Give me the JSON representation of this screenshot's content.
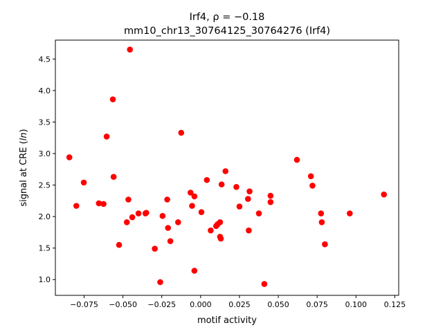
{
  "chart_data": {
    "type": "scatter",
    "title_line1": "Irf4, ρ = −0.18",
    "title_line2": "mm10_chr13_30764125_30764276 (Irf4)",
    "xlabel": "motif activity",
    "ylabel": "signal at CRE (ln)",
    "xlim": [
      -0.0935,
      0.1275
    ],
    "ylim": [
      0.75,
      4.8
    ],
    "xticks": [
      -0.075,
      -0.05,
      -0.025,
      0.0,
      0.025,
      0.05,
      0.075,
      0.1,
      0.125
    ],
    "xtick_labels": [
      "−0.075",
      "−0.050",
      "−0.025",
      "0.000",
      "0.025",
      "0.050",
      "0.075",
      "0.100",
      "0.125"
    ],
    "yticks": [
      1.0,
      1.5,
      2.0,
      2.5,
      3.0,
      3.5,
      4.0,
      4.5
    ],
    "ytick_labels": [
      "1.0",
      "1.5",
      "2.0",
      "2.5",
      "3.0",
      "3.5",
      "4.0",
      "4.5"
    ],
    "grid": false,
    "marker_color": "#ff0000",
    "points": [
      {
        "x": -0.0845,
        "y": 2.94
      },
      {
        "x": -0.08,
        "y": 2.17
      },
      {
        "x": -0.0752,
        "y": 2.54
      },
      {
        "x": -0.0655,
        "y": 2.21
      },
      {
        "x": -0.0625,
        "y": 2.2
      },
      {
        "x": -0.0605,
        "y": 3.27
      },
      {
        "x": -0.0565,
        "y": 3.86
      },
      {
        "x": -0.056,
        "y": 2.63
      },
      {
        "x": -0.0525,
        "y": 1.55
      },
      {
        "x": -0.0475,
        "y": 1.91
      },
      {
        "x": -0.0465,
        "y": 2.27
      },
      {
        "x": -0.0455,
        "y": 4.65
      },
      {
        "x": -0.044,
        "y": 1.99
      },
      {
        "x": -0.04,
        "y": 2.05
      },
      {
        "x": -0.0355,
        "y": 2.05
      },
      {
        "x": -0.035,
        "y": 2.06
      },
      {
        "x": -0.0295,
        "y": 1.49
      },
      {
        "x": -0.026,
        "y": 0.96
      },
      {
        "x": -0.0245,
        "y": 2.01
      },
      {
        "x": -0.0215,
        "y": 2.27
      },
      {
        "x": -0.021,
        "y": 1.82
      },
      {
        "x": -0.0195,
        "y": 1.61
      },
      {
        "x": -0.0145,
        "y": 1.91
      },
      {
        "x": -0.0125,
        "y": 3.33
      },
      {
        "x": -0.0065,
        "y": 2.38
      },
      {
        "x": -0.0055,
        "y": 2.17
      },
      {
        "x": -0.004,
        "y": 2.32
      },
      {
        "x": -0.004,
        "y": 1.14
      },
      {
        "x": 0.0005,
        "y": 2.07
      },
      {
        "x": 0.004,
        "y": 2.58
      },
      {
        "x": 0.0065,
        "y": 1.78
      },
      {
        "x": 0.01,
        "y": 1.85
      },
      {
        "x": 0.011,
        "y": 1.88
      },
      {
        "x": 0.0125,
        "y": 1.91
      },
      {
        "x": 0.0125,
        "y": 1.68
      },
      {
        "x": 0.013,
        "y": 1.65
      },
      {
        "x": 0.0135,
        "y": 2.51
      },
      {
        "x": 0.016,
        "y": 2.72
      },
      {
        "x": 0.023,
        "y": 2.47
      },
      {
        "x": 0.025,
        "y": 2.16
      },
      {
        "x": 0.0305,
        "y": 2.28
      },
      {
        "x": 0.031,
        "y": 1.78
      },
      {
        "x": 0.0315,
        "y": 2.4
      },
      {
        "x": 0.0375,
        "y": 2.05
      },
      {
        "x": 0.041,
        "y": 0.93
      },
      {
        "x": 0.045,
        "y": 2.33
      },
      {
        "x": 0.045,
        "y": 2.23
      },
      {
        "x": 0.062,
        "y": 2.9
      },
      {
        "x": 0.071,
        "y": 2.64
      },
      {
        "x": 0.072,
        "y": 2.49
      },
      {
        "x": 0.0775,
        "y": 2.05
      },
      {
        "x": 0.078,
        "y": 1.91
      },
      {
        "x": 0.08,
        "y": 1.56
      },
      {
        "x": 0.096,
        "y": 2.05
      },
      {
        "x": 0.118,
        "y": 2.35
      }
    ]
  }
}
